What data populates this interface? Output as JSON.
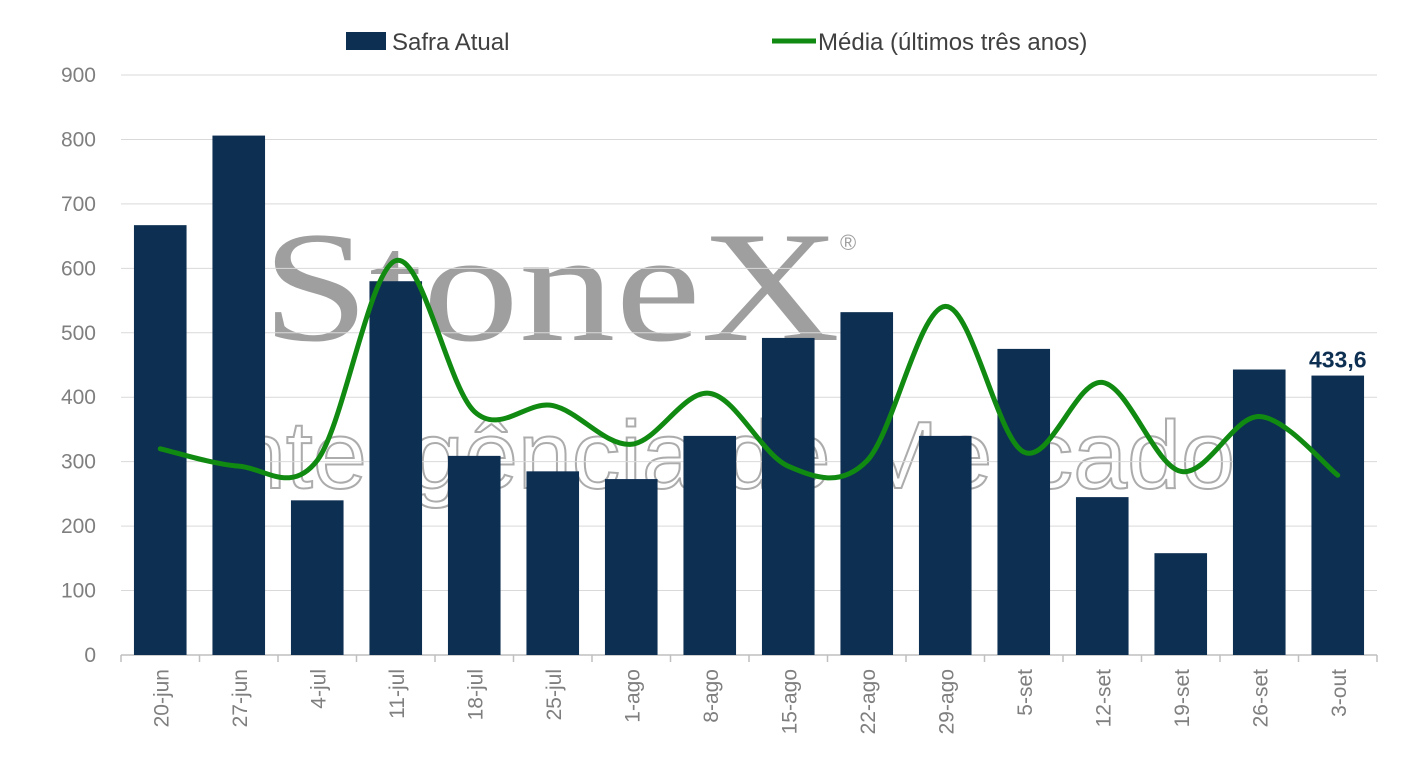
{
  "colors": {
    "bar": "#0d2f52",
    "line": "#118a12",
    "grid": "#d9d9d9",
    "tick": "#7f7f7f",
    "watermark": "#9a9a9a"
  },
  "watermark": {
    "brand": "StoneX",
    "registered": "®",
    "tagline": "Inteligência de Mercado"
  },
  "chart_data": {
    "type": "bar",
    "title": "",
    "xlabel": "",
    "ylabel": "",
    "ylim": [
      0,
      900
    ],
    "yticks": [
      0,
      100,
      200,
      300,
      400,
      500,
      600,
      700,
      800,
      900
    ],
    "grid": true,
    "legend_position": "top",
    "categories": [
      "20-jun",
      "27-jun",
      "4-jul",
      "11-jul",
      "18-jul",
      "25-jul",
      "1-ago",
      "8-ago",
      "15-ago",
      "22-ago",
      "29-ago",
      "5-set",
      "12-set",
      "19-set",
      "26-set",
      "3-out"
    ],
    "series": [
      {
        "name": "Safra Atual",
        "type": "bar",
        "color": "#0d2f52",
        "values": [
          667,
          806,
          240,
          580,
          309,
          285,
          273,
          340,
          492,
          532,
          340,
          475,
          245,
          158,
          443,
          433.6
        ]
      },
      {
        "name": "Média (últimos três anos)",
        "type": "line",
        "color": "#118a12",
        "values": [
          320,
          293,
          302,
          612,
          378,
          387,
          327,
          406,
          293,
          301,
          541,
          315,
          423,
          285,
          370,
          279
        ]
      }
    ],
    "data_labels": [
      {
        "series": "Safra Atual",
        "category": "3-out",
        "text": "433,6"
      }
    ]
  }
}
